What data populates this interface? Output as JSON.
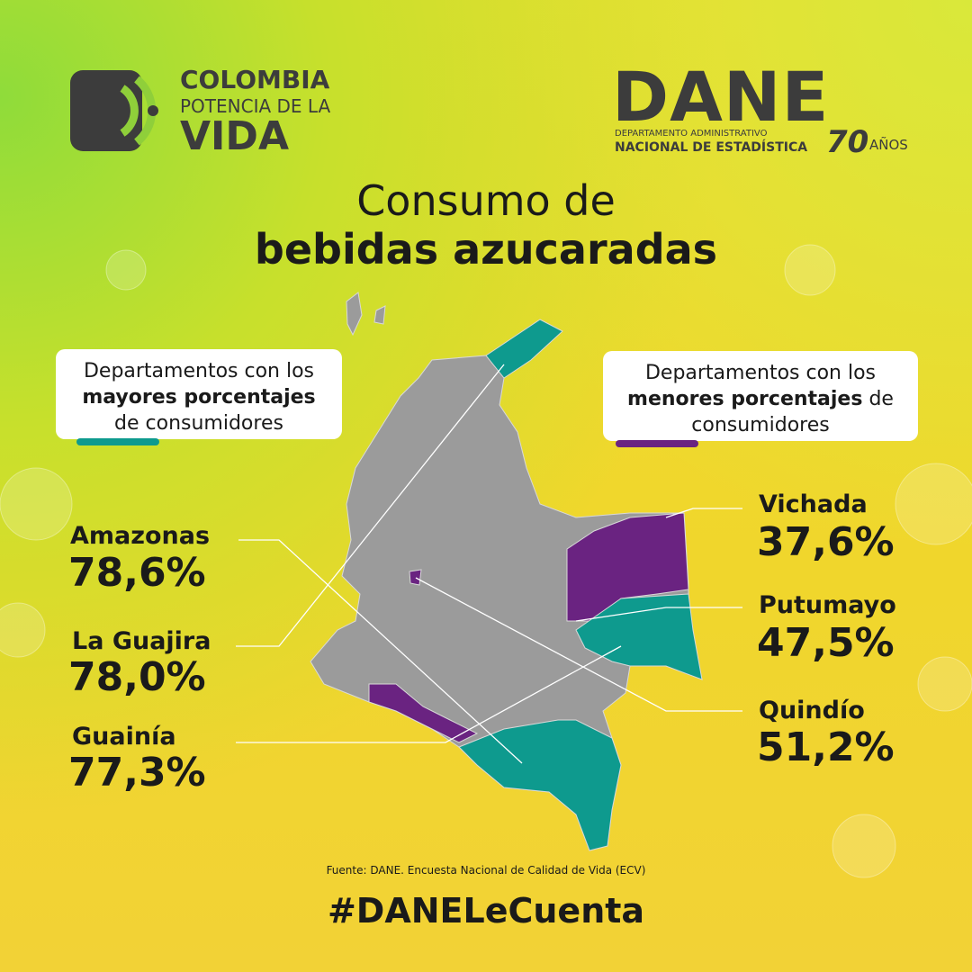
{
  "header": {
    "left_logo": {
      "line1": "COLOMBIA",
      "line2": "POTENCIA DE LA",
      "line3": "VIDA"
    },
    "right_logo": {
      "name": "DANE",
      "line1": "DEPARTAMENTO ADMINISTRATIVO",
      "line2": "NACIONAL DE ESTADÍSTICA",
      "anniversary": "70",
      "anniversary_label": "AÑOS"
    }
  },
  "title": {
    "line1": "Consumo de",
    "line2": "bebidas azucaradas"
  },
  "legend": {
    "highest": {
      "line1": "Departamentos con los",
      "bold": "mayores porcentajes",
      "rest": "de consumidores"
    },
    "lowest": {
      "line1": "Departamentos con los",
      "bold": "menores porcentajes",
      "rest_inline": "de",
      "rest": "consumidores"
    }
  },
  "highest": [
    {
      "name": "Amazonas",
      "value": "78,6%"
    },
    {
      "name": "La Guajira",
      "value": "78,0%"
    },
    {
      "name": "Guainía",
      "value": "77,3%"
    }
  ],
  "lowest": [
    {
      "name": "Vichada",
      "value": "37,6%"
    },
    {
      "name": "Putumayo",
      "value": "47,5%"
    },
    {
      "name": "Quindío",
      "value": "51,2%"
    }
  ],
  "source": "Fuente: DANE. Encuesta Nacional de Calidad de Vida (ECV)",
  "hashtag": "#DANELeCuenta"
}
